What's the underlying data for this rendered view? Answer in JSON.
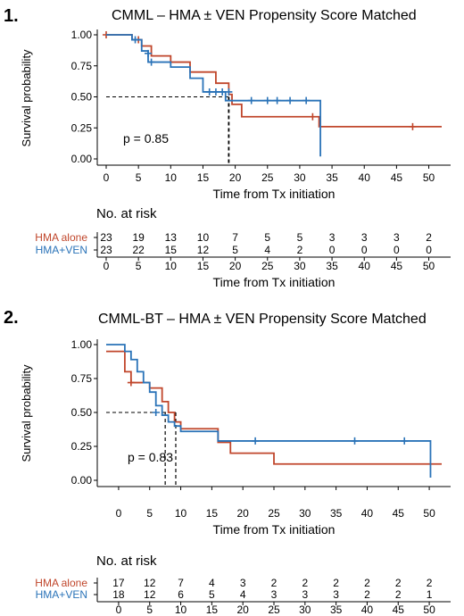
{
  "colors": {
    "hma_alone": "#c0462b",
    "hma_ven": "#2a73b8",
    "axis": "#000000"
  },
  "chart_data": [
    {
      "type": "line",
      "panel_number": "1.",
      "title": "CMML – HMA ± VEN Propensity Score Matched",
      "xlabel": "Time from Tx initiation",
      "ylabel": "Survival probability",
      "xlim": [
        0,
        52
      ],
      "ylim": [
        0,
        1
      ],
      "x_ticks": [
        "0",
        "5",
        "10",
        "15",
        "20",
        "25",
        "30",
        "35",
        "40",
        "45",
        "50"
      ],
      "y_ticks": [
        "0.00",
        "0.25",
        "0.50",
        "0.75",
        "1.00"
      ],
      "p_value": "p = 0.85",
      "median_lines": [
        19
      ],
      "series": [
        {
          "name": "HMA alone",
          "color_key": "hma_alone",
          "steps": [
            [
              0,
              1.0
            ],
            [
              4,
              0.96
            ],
            [
              5.5,
              0.91
            ],
            [
              7,
              0.83
            ],
            [
              10,
              0.78
            ],
            [
              13,
              0.7
            ],
            [
              17,
              0.61
            ],
            [
              19,
              0.52
            ],
            [
              19.5,
              0.44
            ],
            [
              21,
              0.34
            ],
            [
              32,
              0.34
            ],
            [
              33,
              0.26
            ],
            [
              52,
              0.26
            ]
          ],
          "censor": [
            [
              0,
              1.0
            ],
            [
              5,
              0.96
            ],
            [
              32,
              0.34
            ],
            [
              47.5,
              0.26
            ]
          ]
        },
        {
          "name": "HMA+VEN",
          "color_key": "hma_ven",
          "steps": [
            [
              0,
              1.0
            ],
            [
              4,
              0.96
            ],
            [
              5.5,
              0.87
            ],
            [
              6.5,
              0.78
            ],
            [
              10,
              0.74
            ],
            [
              13,
              0.65
            ],
            [
              15,
              0.54
            ],
            [
              18.5,
              0.47
            ],
            [
              33,
              0.47
            ],
            [
              33.2,
              0.02
            ]
          ],
          "censor": [
            [
              4.5,
              0.96
            ],
            [
              6.5,
              0.85
            ],
            [
              7,
              0.78
            ],
            [
              16,
              0.54
            ],
            [
              17,
              0.54
            ],
            [
              18,
              0.54
            ],
            [
              19,
              0.54
            ],
            [
              22.5,
              0.47
            ],
            [
              25,
              0.47
            ],
            [
              26.5,
              0.47
            ],
            [
              28.5,
              0.47
            ],
            [
              31,
              0.47
            ]
          ]
        }
      ]
    },
    {
      "type": "line",
      "panel_number": "2.",
      "title": "CMML-BT – HMA ± VEN Propensity Score Matched",
      "xlabel": "Time from Tx initiation",
      "ylabel": "Survival probability",
      "xlim": [
        -2,
        52
      ],
      "ylim": [
        0,
        1
      ],
      "x_ticks": [
        "0",
        "5",
        "10",
        "15",
        "20",
        "25",
        "30",
        "35",
        "40",
        "45",
        "50"
      ],
      "y_ticks": [
        "0.00",
        "0.25",
        "0.50",
        "0.75",
        "1.00"
      ],
      "p_value": "p = 0.83",
      "median_lines": [
        7.5,
        9.2
      ],
      "series": [
        {
          "name": "HMA alone",
          "color_key": "hma_alone",
          "steps": [
            [
              -2,
              0.95
            ],
            [
              0,
              0.95
            ],
            [
              1,
              0.8
            ],
            [
              2,
              0.72
            ],
            [
              4,
              0.72
            ],
            [
              5,
              0.68
            ],
            [
              7,
              0.58
            ],
            [
              8,
              0.5
            ],
            [
              9,
              0.43
            ],
            [
              10,
              0.38
            ],
            [
              16,
              0.28
            ],
            [
              18,
              0.2
            ],
            [
              25,
              0.12
            ],
            [
              52,
              0.12
            ]
          ],
          "censor": [
            [
              2,
              0.72
            ]
          ]
        },
        {
          "name": "HMA+VEN",
          "color_key": "hma_ven",
          "steps": [
            [
              -2,
              1.0
            ],
            [
              0.5,
              1.0
            ],
            [
              1,
              0.95
            ],
            [
              2,
              0.89
            ],
            [
              3,
              0.8
            ],
            [
              4,
              0.72
            ],
            [
              5,
              0.65
            ],
            [
              6,
              0.55
            ],
            [
              7,
              0.48
            ],
            [
              8,
              0.43
            ],
            [
              9,
              0.4
            ],
            [
              10,
              0.36
            ],
            [
              15,
              0.36
            ],
            [
              16,
              0.29
            ],
            [
              50,
              0.29
            ],
            [
              50.2,
              0.02
            ]
          ],
          "censor": [
            [
              6,
              0.5
            ],
            [
              22,
              0.29
            ],
            [
              38,
              0.29
            ],
            [
              46,
              0.29
            ]
          ]
        }
      ]
    }
  ],
  "risk_tables": [
    {
      "title": "No. at risk",
      "xlabel": "Time from Tx initiation",
      "x_ticks": [
        "0",
        "5",
        "10",
        "15",
        "20",
        "25",
        "30",
        "35",
        "40",
        "45",
        "50"
      ],
      "rows": [
        {
          "label": "HMA alone",
          "color_key": "hma_alone",
          "values": [
            "23",
            "19",
            "13",
            "10",
            "7",
            "5",
            "5",
            "3",
            "3",
            "3",
            "2"
          ]
        },
        {
          "label": "HMA+VEN",
          "color_key": "hma_ven",
          "values": [
            "23",
            "22",
            "15",
            "12",
            "5",
            "4",
            "2",
            "0",
            "0",
            "0",
            "0"
          ]
        }
      ]
    },
    {
      "title": "No. at risk",
      "xlabel": "Time from Tx initiation",
      "x_ticks": [
        "0",
        "5",
        "10",
        "15",
        "20",
        "25",
        "30",
        "35",
        "40",
        "45",
        "50"
      ],
      "rows": [
        {
          "label": "HMA alone",
          "color_key": "hma_alone",
          "values": [
            "17",
            "12",
            "7",
            "4",
            "3",
            "2",
            "2",
            "2",
            "2",
            "2",
            "2"
          ]
        },
        {
          "label": "HMA+VEN",
          "color_key": "hma_ven",
          "values": [
            "18",
            "12",
            "6",
            "5",
            "4",
            "3",
            "3",
            "3",
            "2",
            "2",
            "1"
          ]
        }
      ]
    }
  ]
}
